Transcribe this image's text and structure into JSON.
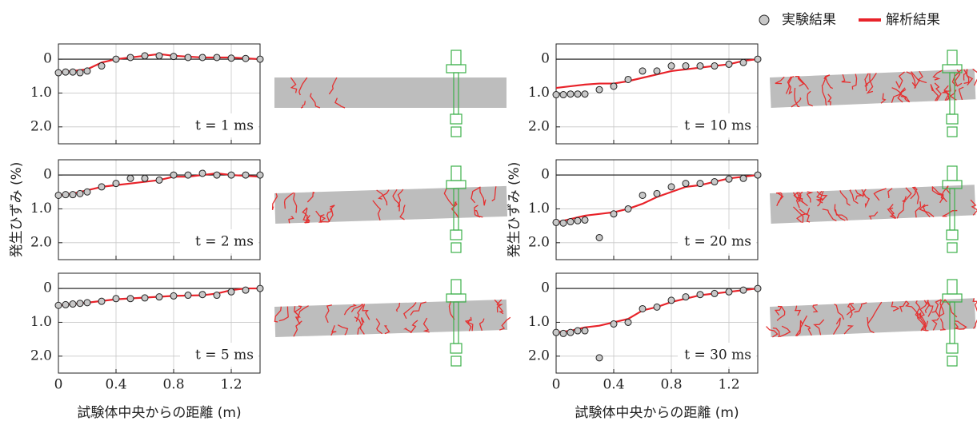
{
  "chart_data": [
    {
      "type": "line",
      "annotation": "t = 1 ms",
      "legend": "top-right",
      "grid": true,
      "zero_line": true,
      "xlim": [
        0,
        1.4
      ],
      "ylim": [
        2.5,
        -0.45
      ],
      "xticks": [
        0,
        0.4,
        0.8,
        1.2
      ],
      "xtick_labels": false,
      "yticks": [
        0,
        {
          "value": 1,
          "label": "1.0"
        },
        {
          "value": 2,
          "label": "2.0"
        }
      ],
      "series": [
        {
          "name": "実験結果",
          "type": "scatter",
          "color": "#c8c8c8",
          "x": [
            0,
            0.05,
            0.1,
            0.15,
            0.2,
            0.3,
            0.4,
            0.5,
            0.6,
            0.7,
            0.8,
            0.9,
            1.0,
            1.1,
            1.2,
            1.3,
            1.4
          ],
          "values": [
            0.4,
            0.38,
            0.38,
            0.4,
            0.35,
            0.2,
            0,
            -0.05,
            -0.1,
            -0.1,
            -0.08,
            -0.05,
            -0.05,
            -0.05,
            -0.03,
            -0.02,
            0
          ]
        },
        {
          "name": "解析結果",
          "type": "line",
          "color": "#e8232a",
          "x": [
            0,
            0.1,
            0.2,
            0.3,
            0.4,
            0.5,
            0.6,
            0.7,
            0.8,
            1.0,
            1.2,
            1.4
          ],
          "values": [
            0.4,
            0.35,
            0.3,
            0.1,
            0,
            -0.05,
            -0.1,
            -0.15,
            -0.1,
            -0.05,
            -0.05,
            0
          ]
        }
      ]
    },
    {
      "type": "line",
      "annotation": "t = 2 ms",
      "ylabel": "発生ひずみ (%)",
      "grid": true,
      "zero_line": true,
      "xlim": [
        0,
        1.4
      ],
      "ylim": [
        2.5,
        -0.45
      ],
      "xticks": [
        0,
        0.4,
        0.8,
        1.2
      ],
      "xtick_labels": false,
      "yticks": [
        0,
        {
          "value": 1,
          "label": "1.0"
        },
        {
          "value": 2,
          "label": "2.0"
        }
      ],
      "series": [
        {
          "type": "scatter",
          "color": "#c8c8c8",
          "x": [
            0,
            0.05,
            0.1,
            0.15,
            0.2,
            0.3,
            0.4,
            0.5,
            0.6,
            0.7,
            0.8,
            0.9,
            1.0,
            1.1,
            1.2,
            1.3,
            1.4
          ],
          "values": [
            0.6,
            0.58,
            0.58,
            0.55,
            0.5,
            0.35,
            0.25,
            0.1,
            0.1,
            0.15,
            0,
            0,
            -0.05,
            0,
            0,
            0,
            0
          ]
        },
        {
          "type": "line",
          "color": "#e8232a",
          "x": [
            0,
            0.1,
            0.2,
            0.3,
            0.4,
            0.5,
            0.6,
            0.7,
            0.8,
            0.9,
            1.0,
            1.1,
            1.2,
            1.4
          ],
          "values": [
            0.6,
            0.55,
            0.45,
            0.35,
            0.3,
            0.25,
            0.2,
            0.15,
            0.05,
            0.05,
            0,
            -0.05,
            0,
            0.05
          ]
        }
      ]
    },
    {
      "type": "line",
      "annotation": "t = 5 ms",
      "xlabel": "試験体中央からの距離 (m)",
      "grid": true,
      "zero_line": true,
      "xlim": [
        0,
        1.4
      ],
      "ylim": [
        2.5,
        -0.45
      ],
      "xticks": [
        0,
        0.4,
        0.8,
        1.2
      ],
      "xtick_labels": true,
      "yticks": [
        0,
        {
          "value": 1,
          "label": "1.0"
        },
        {
          "value": 2,
          "label": "2.0"
        }
      ],
      "series": [
        {
          "type": "scatter",
          "color": "#c8c8c8",
          "x": [
            0,
            0.05,
            0.1,
            0.15,
            0.2,
            0.3,
            0.4,
            0.5,
            0.6,
            0.7,
            0.8,
            0.9,
            1.0,
            1.1,
            1.2,
            1.3,
            1.4
          ],
          "values": [
            0.5,
            0.48,
            0.46,
            0.44,
            0.42,
            0.38,
            0.3,
            0.3,
            0.28,
            0.25,
            0.22,
            0.2,
            0.18,
            0.2,
            0.1,
            0.05,
            0
          ]
        },
        {
          "type": "line",
          "color": "#e8232a",
          "x": [
            0,
            0.2,
            0.4,
            0.6,
            0.8,
            1.0,
            1.1,
            1.2,
            1.3,
            1.4
          ],
          "values": [
            0.5,
            0.42,
            0.32,
            0.27,
            0.22,
            0.2,
            0.15,
            0.05,
            0,
            0
          ]
        }
      ]
    },
    {
      "type": "line",
      "annotation": "t = 10 ms",
      "grid": true,
      "zero_line": true,
      "xlim": [
        0,
        1.4
      ],
      "ylim": [
        2.5,
        -0.45
      ],
      "xticks": [
        0,
        0.4,
        0.8,
        1.2
      ],
      "xtick_labels": false,
      "yticks": [
        0,
        {
          "value": 1,
          "label": "1.0"
        },
        {
          "value": 2,
          "label": "2.0"
        }
      ],
      "series": [
        {
          "type": "scatter",
          "color": "#c8c8c8",
          "x": [
            0,
            0.05,
            0.1,
            0.15,
            0.2,
            0.3,
            0.4,
            0.5,
            0.6,
            0.7,
            0.8,
            0.9,
            1.0,
            1.1,
            1.2,
            1.3,
            1.4
          ],
          "values": [
            1.05,
            1.05,
            1.03,
            1.03,
            1.03,
            0.9,
            0.8,
            0.6,
            0.35,
            0.35,
            0.2,
            0.2,
            0.2,
            0.2,
            0.15,
            0.1,
            0
          ]
        },
        {
          "type": "line",
          "color": "#e8232a",
          "x": [
            0,
            0.1,
            0.2,
            0.3,
            0.4,
            0.5,
            0.6,
            0.7,
            0.8,
            0.9,
            1.0,
            1.2,
            1.3,
            1.4
          ],
          "values": [
            0.85,
            0.8,
            0.75,
            0.72,
            0.72,
            0.65,
            0.55,
            0.45,
            0.35,
            0.3,
            0.25,
            0.15,
            0.05,
            0
          ]
        }
      ]
    },
    {
      "type": "line",
      "annotation": "t = 20 ms",
      "ylabel": "発生ひずみ (%)",
      "grid": true,
      "zero_line": true,
      "xlim": [
        0,
        1.4
      ],
      "ylim": [
        2.5,
        -0.45
      ],
      "xticks": [
        0,
        0.4,
        0.8,
        1.2
      ],
      "xtick_labels": false,
      "yticks": [
        0,
        {
          "value": 1,
          "label": "1.0"
        },
        {
          "value": 2,
          "label": "2.0"
        }
      ],
      "series": [
        {
          "type": "scatter",
          "color": "#c8c8c8",
          "x": [
            0,
            0.05,
            0.1,
            0.15,
            0.2,
            0.3,
            0.4,
            0.5,
            0.6,
            0.7,
            0.8,
            0.9,
            1.0,
            1.1,
            1.2,
            1.3,
            1.4
          ],
          "values": [
            1.4,
            1.42,
            1.38,
            1.35,
            1.33,
            1.85,
            1.15,
            1,
            0.6,
            0.55,
            0.35,
            0.25,
            0.25,
            0.2,
            0.12,
            0.1,
            0
          ]
        },
        {
          "type": "line",
          "color": "#e8232a",
          "x": [
            0,
            0.1,
            0.2,
            0.3,
            0.4,
            0.5,
            0.6,
            0.7,
            0.8,
            0.9,
            1.0,
            1.1,
            1.2,
            1.3,
            1.4
          ],
          "values": [
            1.4,
            1.3,
            1.2,
            1.15,
            1.1,
            1.0,
            0.85,
            0.65,
            0.5,
            0.35,
            0.3,
            0.2,
            0.1,
            0.05,
            0
          ]
        }
      ]
    },
    {
      "type": "line",
      "annotation": "t = 30 ms",
      "xlabel": "試験体中央からの距離 (m)",
      "grid": true,
      "zero_line": true,
      "xlim": [
        0,
        1.4
      ],
      "ylim": [
        2.5,
        -0.45
      ],
      "xticks": [
        0,
        0.4,
        0.8,
        1.2
      ],
      "xtick_labels": true,
      "yticks": [
        0,
        {
          "value": 1,
          "label": "1.0"
        },
        {
          "value": 2,
          "label": "2.0"
        }
      ],
      "series": [
        {
          "type": "scatter",
          "color": "#c8c8c8",
          "x": [
            0,
            0.05,
            0.1,
            0.15,
            0.2,
            0.3,
            0.4,
            0.5,
            0.6,
            0.7,
            0.8,
            0.9,
            1.0,
            1.1,
            1.2,
            1.3,
            1.4
          ],
          "values": [
            1.3,
            1.33,
            1.3,
            1.25,
            1.25,
            2.05,
            1.05,
            1.0,
            0.6,
            0.55,
            0.35,
            0.25,
            0.18,
            0.15,
            0.1,
            0.05,
            0
          ]
        },
        {
          "type": "line",
          "color": "#e8232a",
          "x": [
            0,
            0.1,
            0.2,
            0.3,
            0.4,
            0.5,
            0.6,
            0.7,
            0.8,
            0.9,
            1.0,
            1.1,
            1.2,
            1.3,
            1.4
          ],
          "values": [
            1.3,
            1.25,
            1.15,
            1.1,
            1.0,
            0.9,
            0.65,
            0.55,
            0.4,
            0.3,
            0.2,
            0.15,
            0.1,
            0.05,
            0
          ]
        }
      ]
    }
  ]
}
